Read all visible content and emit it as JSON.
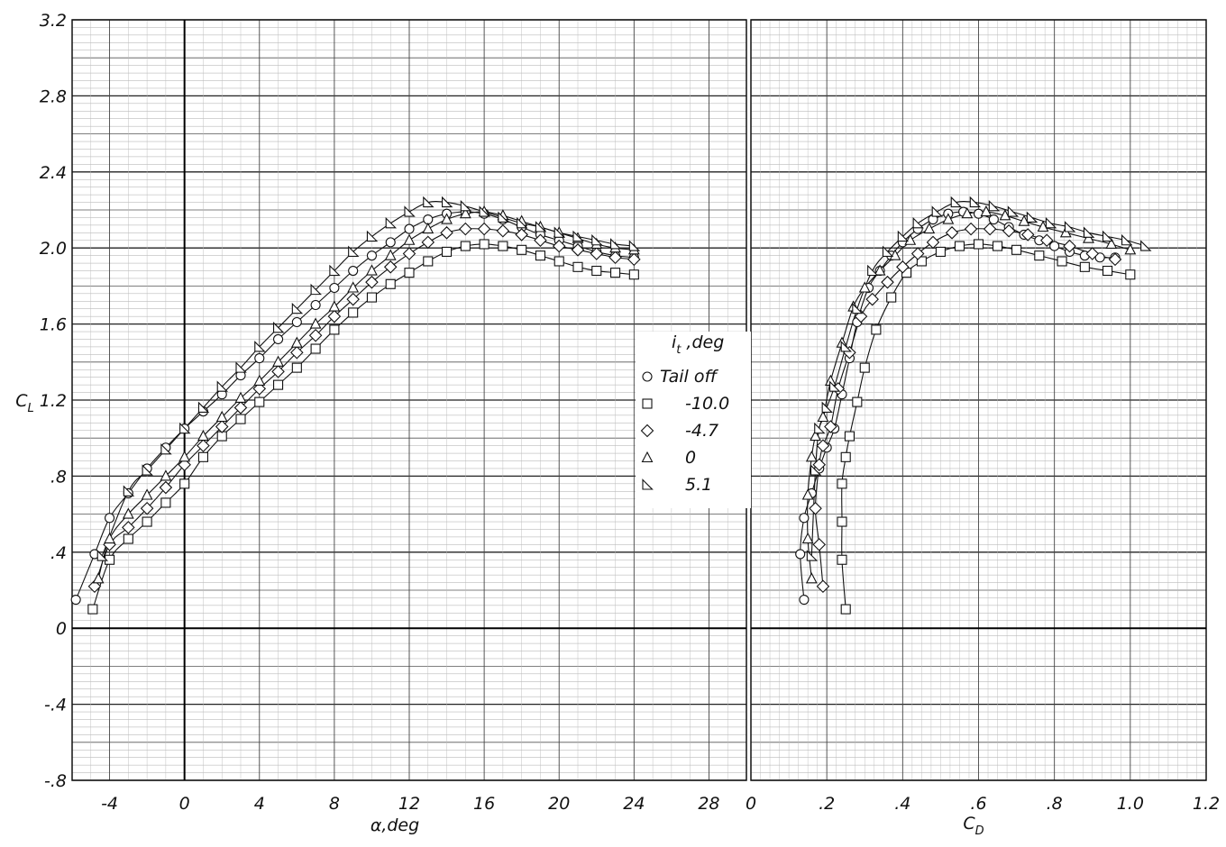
{
  "chart_data": [
    {
      "type": "scatter",
      "xlabel": "α,deg",
      "ylabel": "C_L",
      "xlim": [
        -6,
        30
      ],
      "ylim": [
        -0.8,
        3.2
      ],
      "xticks": [
        "-4",
        "0",
        "4",
        "8",
        "12",
        "16",
        "20",
        "24",
        "28"
      ],
      "yticks": [
        "3.2",
        "2.8",
        "2.4",
        "2.0",
        "1.6",
        "C_L 1.2",
        ".8",
        ".4",
        "0",
        "-.4",
        "-.8"
      ],
      "grid": true,
      "legend_position": "center-right",
      "series": [
        {
          "name": "Tail off",
          "marker": "circle",
          "x": [
            -5.8,
            -4.8,
            -4.0,
            -3.0,
            -2.0,
            -1.0,
            0.0,
            1.0,
            2.0,
            3.0,
            4.0,
            5.0,
            6.0,
            7.0,
            8.0,
            9.0,
            10.0,
            11.0,
            12.0,
            13.0,
            14.0,
            15.0,
            16.0,
            17.0,
            18.0,
            19.0,
            20.0,
            21.0,
            22.0,
            23.0,
            24.0
          ],
          "y": [
            0.15,
            0.39,
            0.58,
            0.71,
            0.84,
            0.95,
            1.05,
            1.14,
            1.23,
            1.33,
            1.42,
            1.52,
            1.61,
            1.7,
            1.79,
            1.88,
            1.96,
            2.03,
            2.1,
            2.15,
            2.18,
            2.19,
            2.18,
            2.15,
            2.11,
            2.07,
            2.04,
            2.01,
            1.98,
            1.96,
            1.95
          ]
        },
        {
          "name": "-10.0",
          "marker": "square",
          "x": [
            -4.9,
            -4.0,
            -3.0,
            -2.0,
            -1.0,
            0.0,
            1.0,
            2.0,
            3.0,
            4.0,
            5.0,
            6.0,
            7.0,
            8.0,
            9.0,
            10.0,
            11.0,
            12.0,
            13.0,
            14.0,
            15.0,
            16.0,
            17.0,
            18.0,
            19.0,
            20.0,
            21.0,
            22.0,
            23.0,
            24.0
          ],
          "y": [
            0.1,
            0.36,
            0.47,
            0.56,
            0.66,
            0.76,
            0.9,
            1.01,
            1.1,
            1.19,
            1.28,
            1.37,
            1.47,
            1.57,
            1.66,
            1.74,
            1.81,
            1.87,
            1.93,
            1.98,
            2.01,
            2.02,
            2.01,
            1.99,
            1.96,
            1.93,
            1.9,
            1.88,
            1.87,
            1.86
          ]
        },
        {
          "name": "-4.7",
          "marker": "diamond",
          "x": [
            -4.8,
            -4.0,
            -3.0,
            -2.0,
            -1.0,
            0.0,
            1.0,
            2.0,
            3.0,
            4.0,
            5.0,
            6.0,
            7.0,
            8.0,
            9.0,
            10.0,
            11.0,
            12.0,
            13.0,
            14.0,
            15.0,
            16.0,
            17.0,
            18.0,
            19.0,
            20.0,
            21.0,
            22.0,
            23.0,
            24.0
          ],
          "y": [
            0.22,
            0.44,
            0.53,
            0.63,
            0.74,
            0.86,
            0.96,
            1.06,
            1.16,
            1.26,
            1.35,
            1.45,
            1.54,
            1.64,
            1.73,
            1.82,
            1.9,
            1.97,
            2.03,
            2.08,
            2.1,
            2.1,
            2.09,
            2.07,
            2.04,
            2.01,
            1.99,
            1.97,
            1.95,
            1.94
          ]
        },
        {
          "name": "0",
          "marker": "triangle",
          "x": [
            -4.6,
            -4.0,
            -3.0,
            -2.0,
            -1.0,
            0.0,
            1.0,
            2.0,
            3.0,
            4.0,
            5.0,
            6.0,
            7.0,
            8.0,
            9.0,
            10.0,
            11.0,
            12.0,
            13.0,
            14.0,
            15.0,
            16.0,
            17.0,
            18.0,
            19.0,
            20.0,
            21.0,
            22.0,
            23.0,
            24.0
          ],
          "y": [
            0.26,
            0.47,
            0.6,
            0.7,
            0.8,
            0.9,
            1.01,
            1.11,
            1.21,
            1.3,
            1.4,
            1.5,
            1.6,
            1.69,
            1.79,
            1.88,
            1.96,
            2.04,
            2.1,
            2.15,
            2.18,
            2.19,
            2.17,
            2.14,
            2.11,
            2.08,
            2.05,
            2.02,
            2.0,
            1.99
          ]
        },
        {
          "name": "5.1",
          "marker": "right-triangle",
          "x": [
            -4.4,
            -3.0,
            -2.0,
            -1.0,
            0.0,
            1.0,
            2.0,
            3.0,
            4.0,
            5.0,
            6.0,
            7.0,
            8.0,
            9.0,
            10.0,
            11.0,
            12.0,
            13.0,
            14.0,
            15.0,
            16.0,
            17.0,
            18.0,
            19.0,
            20.0,
            21.0,
            22.0,
            23.0,
            24.0
          ],
          "y": [
            0.38,
            0.72,
            0.83,
            0.94,
            1.05,
            1.16,
            1.27,
            1.37,
            1.48,
            1.58,
            1.68,
            1.78,
            1.88,
            1.98,
            2.06,
            2.13,
            2.19,
            2.24,
            2.24,
            2.22,
            2.19,
            2.16,
            2.13,
            2.11,
            2.08,
            2.06,
            2.04,
            2.02,
            2.01
          ]
        }
      ]
    },
    {
      "type": "scatter",
      "xlabel": "C_D",
      "ylabel": "",
      "xlim": [
        0,
        1.2
      ],
      "ylim": [
        -0.8,
        3.2
      ],
      "xticks": [
        "0",
        ".2",
        ".4",
        ".6",
        ".8",
        "1.0",
        "1.2"
      ],
      "grid": true,
      "series": [
        {
          "name": "Tail off",
          "marker": "circle",
          "x": [
            0.14,
            0.13,
            0.14,
            0.16,
            0.18,
            0.2,
            0.22,
            0.24,
            0.26,
            0.28,
            0.31,
            0.34,
            0.37,
            0.4,
            0.44,
            0.48,
            0.52,
            0.56,
            0.6,
            0.64,
            0.68,
            0.72,
            0.76,
            0.8,
            0.84,
            0.88,
            0.92,
            0.96
          ],
          "y": [
            0.15,
            0.39,
            0.58,
            0.71,
            0.84,
            0.95,
            1.05,
            1.23,
            1.42,
            1.61,
            1.79,
            1.88,
            1.96,
            2.03,
            2.1,
            2.15,
            2.18,
            2.19,
            2.18,
            2.15,
            2.11,
            2.07,
            2.04,
            2.01,
            1.98,
            1.96,
            1.95,
            1.95
          ]
        },
        {
          "name": "-10.0",
          "marker": "square",
          "x": [
            0.25,
            0.24,
            0.24,
            0.24,
            0.25,
            0.26,
            0.28,
            0.3,
            0.33,
            0.37,
            0.41,
            0.45,
            0.5,
            0.55,
            0.6,
            0.65,
            0.7,
            0.76,
            0.82,
            0.88,
            0.94,
            1.0
          ],
          "y": [
            0.1,
            0.36,
            0.56,
            0.76,
            0.9,
            1.01,
            1.19,
            1.37,
            1.57,
            1.74,
            1.87,
            1.93,
            1.98,
            2.01,
            2.02,
            2.01,
            1.99,
            1.96,
            1.93,
            1.9,
            1.88,
            1.86
          ]
        },
        {
          "name": "-4.7",
          "marker": "diamond",
          "x": [
            0.19,
            0.18,
            0.17,
            0.18,
            0.19,
            0.21,
            0.23,
            0.26,
            0.29,
            0.32,
            0.36,
            0.4,
            0.44,
            0.48,
            0.53,
            0.58,
            0.63,
            0.68,
            0.73,
            0.78,
            0.84,
            0.9,
            0.96
          ],
          "y": [
            0.22,
            0.44,
            0.63,
            0.86,
            0.96,
            1.06,
            1.26,
            1.45,
            1.64,
            1.73,
            1.82,
            1.9,
            1.97,
            2.03,
            2.08,
            2.1,
            2.1,
            2.09,
            2.07,
            2.04,
            2.01,
            1.97,
            1.94
          ]
        },
        {
          "name": "0",
          "marker": "triangle",
          "x": [
            0.16,
            0.15,
            0.15,
            0.16,
            0.17,
            0.19,
            0.21,
            0.24,
            0.27,
            0.3,
            0.34,
            0.38,
            0.42,
            0.47,
            0.52,
            0.57,
            0.62,
            0.67,
            0.72,
            0.77,
            0.83,
            0.89,
            0.95,
            1.0
          ],
          "y": [
            0.26,
            0.47,
            0.7,
            0.9,
            1.01,
            1.11,
            1.3,
            1.5,
            1.69,
            1.79,
            1.88,
            1.96,
            2.04,
            2.1,
            2.15,
            2.18,
            2.19,
            2.17,
            2.14,
            2.11,
            2.08,
            2.05,
            2.02,
            1.99
          ]
        },
        {
          "name": "5.1",
          "marker": "right-triangle",
          "x": [
            0.16,
            0.17,
            0.18,
            0.2,
            0.22,
            0.25,
            0.28,
            0.32,
            0.36,
            0.4,
            0.44,
            0.49,
            0.54,
            0.59,
            0.64,
            0.69,
            0.74,
            0.79,
            0.84,
            0.89,
            0.94,
            0.99,
            1.04
          ],
          "y": [
            0.38,
            0.83,
            1.05,
            1.16,
            1.27,
            1.48,
            1.68,
            1.88,
            1.98,
            2.06,
            2.13,
            2.19,
            2.24,
            2.24,
            2.22,
            2.19,
            2.16,
            2.13,
            2.11,
            2.08,
            2.06,
            2.04,
            2.01
          ]
        }
      ]
    }
  ],
  "legend": {
    "title": "i_t ,deg",
    "entries": [
      "Tail off",
      "-10.0",
      "-4.7",
      "0",
      "5.1"
    ]
  }
}
